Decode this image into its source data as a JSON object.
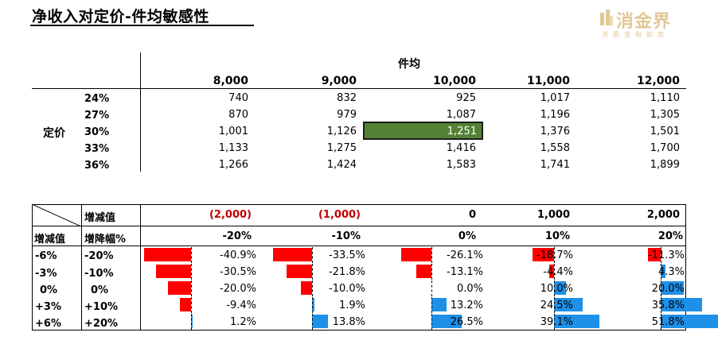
{
  "title": "净收入对定价-件均敏感性",
  "logo": {
    "name": "消金界",
    "sub": "消费金融知库"
  },
  "table1": {
    "col_group_label": "件均",
    "row_group_label": "定价",
    "columns": [
      "8,000",
      "9,000",
      "10,000",
      "11,000",
      "12,000"
    ],
    "rows": [
      {
        "label": "24%",
        "values": [
          "740",
          "832",
          "925",
          "1,017",
          "1,110"
        ]
      },
      {
        "label": "27%",
        "values": [
          "870",
          "979",
          "1,087",
          "1,196",
          "1,305"
        ]
      },
      {
        "label": "30%",
        "values": [
          "1,001",
          "1,126",
          "1,251",
          "1,376",
          "1,501"
        ]
      },
      {
        "label": "33%",
        "values": [
          "1,133",
          "1,275",
          "1,416",
          "1,558",
          "1,700"
        ]
      },
      {
        "label": "36%",
        "values": [
          "1,266",
          "1,424",
          "1,583",
          "1,741",
          "1,899"
        ]
      }
    ],
    "highlight": {
      "row": 2,
      "col": 2,
      "color": "#548235"
    }
  },
  "table2": {
    "header_label_1": "增减值",
    "header_label_2": "增降幅%",
    "row_header_label": "增减值",
    "change_values": [
      "(2,000)",
      "(1,000)",
      "0",
      "1,000",
      "2,000"
    ],
    "change_pcts": [
      "-20%",
      "-10%",
      "0%",
      "10%",
      "20%"
    ],
    "rows": [
      {
        "a": "-6%",
        "b": "-20%",
        "cells": [
          "-40.9%",
          "-33.5%",
          "-26.1%",
          "-18.7%",
          "-11.3%"
        ],
        "nums": [
          -40.9,
          -33.5,
          -26.1,
          -18.7,
          -11.3
        ]
      },
      {
        "a": "-3%",
        "b": "-10%",
        "cells": [
          "-30.5%",
          "-21.8%",
          "-13.1%",
          "-4.4%",
          "4.3%"
        ],
        "nums": [
          -30.5,
          -21.8,
          -13.1,
          -4.4,
          4.3
        ]
      },
      {
        "a": "0%",
        "b": "0%",
        "cells": [
          "-20.0%",
          "-10.0%",
          "0.0%",
          "10.0%",
          "20.0%"
        ],
        "nums": [
          -20.0,
          -10.0,
          0.0,
          10.0,
          20.0
        ]
      },
      {
        "a": "+3%",
        "b": "+10%",
        "cells": [
          "-9.4%",
          "1.9%",
          "13.2%",
          "24.5%",
          "35.8%"
        ],
        "nums": [
          -9.4,
          1.9,
          13.2,
          24.5,
          35.8
        ]
      },
      {
        "a": "+6%",
        "b": "+20%",
        "cells": [
          "1.2%",
          "13.8%",
          "26.5%",
          "39.1%",
          "51.8%"
        ],
        "nums": [
          1.2,
          13.8,
          26.5,
          39.1,
          51.8
        ]
      }
    ],
    "colors": {
      "negative": "#ff0000",
      "positive": "#1e90e8",
      "change_value_negative": "#c00000"
    }
  }
}
